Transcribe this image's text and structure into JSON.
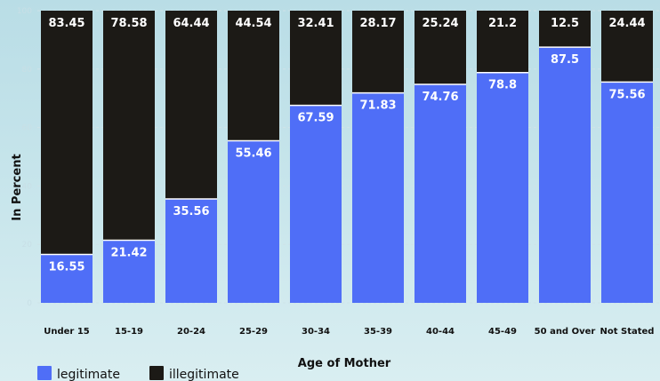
{
  "chart_data": {
    "type": "bar",
    "stacked": true,
    "categories": [
      "Under 15",
      "15-19",
      "20-24",
      "25-29",
      "30-34",
      "35-39",
      "40-44",
      "45-49",
      "50 and Over",
      "Not Stated"
    ],
    "series": [
      {
        "name": "legitimate",
        "color": "#4f6ef7",
        "values": [
          16.55,
          21.42,
          35.56,
          55.46,
          67.59,
          71.83,
          74.76,
          78.8,
          87.5,
          75.56
        ]
      },
      {
        "name": "illegitimate",
        "color": "#1c1a16",
        "values": [
          83.45,
          78.58,
          64.44,
          44.54,
          32.41,
          28.17,
          25.24,
          21.2,
          12.5,
          24.44
        ]
      }
    ],
    "xlabel": "Age of Mother",
    "ylabel": "In Percent",
    "ylim": [
      0,
      100
    ],
    "yticks": [
      0,
      20,
      40,
      60,
      80,
      100
    ],
    "grid": true,
    "legend": "bottom-left"
  }
}
